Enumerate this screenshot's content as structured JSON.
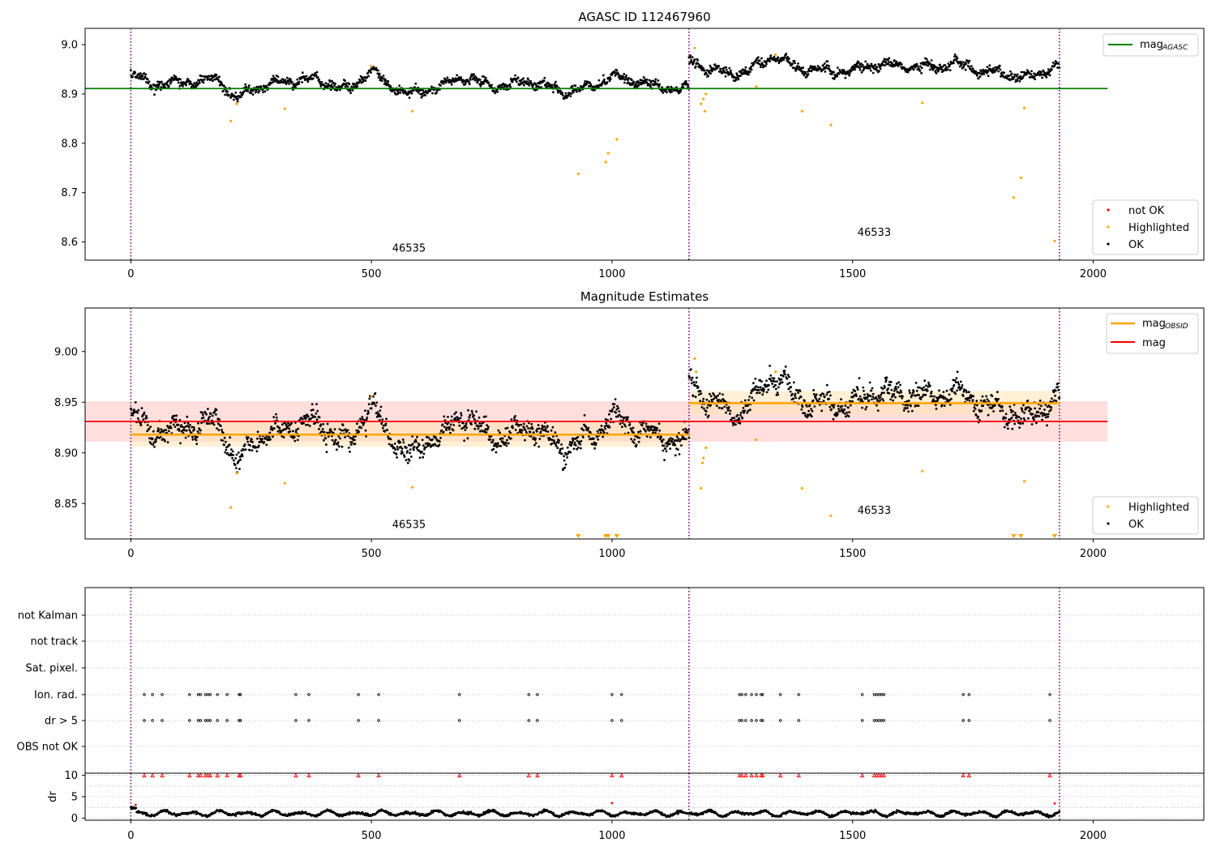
{
  "colors": {
    "ok": "#000000",
    "highlighted": "#ffa500",
    "not_ok": "#ff0000",
    "mag_agasc": "#008000",
    "mag_obsid": "#ffa500",
    "mag": "#ff0000",
    "obs_boundary": "#800080",
    "mag_band": "#ffcccc",
    "mag_obsid_band": "#ffe4b5"
  },
  "chart_data": [
    {
      "type": "scatter",
      "title": "AGASC ID 112467960",
      "xlabel": "",
      "ylabel": "",
      "xlim": [
        -95,
        2230
      ],
      "ylim": [
        8.563,
        9.033
      ],
      "xticks": [
        0,
        500,
        1000,
        1500,
        2000
      ],
      "yticks": [
        8.6,
        8.7,
        8.8,
        8.9,
        9.0
      ],
      "ytick_labels": [
        "8.6",
        "8.7",
        "8.8",
        "8.9",
        "9.0"
      ],
      "grid": false,
      "legend_placement": [
        "upper-right",
        "lower-right"
      ],
      "legend": {
        "upper": [
          {
            "label": "mag",
            "sub": "AGASC"
          }
        ],
        "lower": [
          {
            "label": "not OK"
          },
          {
            "label": "Highlighted"
          },
          {
            "label": "OK"
          }
        ]
      },
      "lines": [
        {
          "name": "mag_AGASC",
          "y": 8.911,
          "x": [
            -95,
            2030
          ]
        }
      ],
      "obs_boundaries": [
        0,
        1160,
        1930
      ],
      "obsids": [
        {
          "label": "46535",
          "x": 578,
          "y": 8.58
        },
        {
          "label": "46533",
          "x": 1545,
          "y": 8.612
        }
      ],
      "highlighted": {
        "x": [
          208,
          220,
          320,
          500,
          585,
          930,
          987,
          992,
          1010,
          1172,
          1185,
          1190,
          1193,
          1195,
          1300,
          1340,
          1395,
          1455,
          1645,
          1835,
          1850,
          1857,
          1920
        ],
        "y": [
          8.845,
          8.88,
          8.87,
          8.956,
          8.865,
          8.738,
          8.762,
          8.78,
          8.808,
          8.993,
          8.88,
          8.89,
          8.865,
          8.9,
          8.915,
          8.98,
          8.865,
          8.837,
          8.882,
          8.69,
          8.73,
          8.872,
          8.602
        ]
      },
      "ok_segments": [
        {
          "x_range": [
            0,
            1160
          ],
          "knots_x": [
            0,
            60,
            130,
            180,
            220,
            260,
            330,
            380,
            450,
            500,
            540,
            580,
            640,
            690,
            760,
            830,
            900,
            960,
            1000,
            1050,
            1100,
            1160
          ],
          "knots_y": [
            8.935,
            8.92,
            8.925,
            8.93,
            8.89,
            8.915,
            8.925,
            8.93,
            8.91,
            8.945,
            8.915,
            8.9,
            8.915,
            8.935,
            8.915,
            8.925,
            8.905,
            8.915,
            8.935,
            8.925,
            8.915,
            8.91
          ],
          "noise": 0.008
        },
        {
          "x_range": [
            1160,
            1930
          ],
          "knots_x": [
            1160,
            1200,
            1260,
            1340,
            1400,
            1480,
            1560,
            1640,
            1720,
            1780,
            1860,
            1930
          ],
          "knots_y": [
            8.97,
            8.95,
            8.94,
            8.975,
            8.95,
            8.945,
            8.96,
            8.955,
            8.96,
            8.945,
            8.935,
            8.955
          ],
          "noise": 0.008
        }
      ]
    },
    {
      "type": "scatter",
      "title": "Magnitude Estimates",
      "xlabel": "",
      "ylabel": "",
      "xlim": [
        -95,
        2230
      ],
      "ylim": [
        8.815,
        9.043
      ],
      "xticks": [
        0,
        500,
        1000,
        1500,
        2000
      ],
      "yticks": [
        8.85,
        8.9,
        8.95,
        9.0
      ],
      "ytick_labels": [
        "8.85",
        "8.90",
        "8.95",
        "9.00"
      ],
      "grid": false,
      "legend_placement": [
        "upper-right",
        "lower-right"
      ],
      "legend": {
        "upper": [
          {
            "label": "mag",
            "sub": "OBSID"
          },
          {
            "label": "mag"
          }
        ],
        "lower": [
          {
            "label": "Highlighted"
          },
          {
            "label": "OK"
          }
        ]
      },
      "lines": [
        {
          "name": "mag",
          "y": 8.931,
          "x": [
            -95,
            2030
          ],
          "band": [
            8.911,
            8.951
          ]
        },
        {
          "name": "mag_OBSID",
          "y": 8.918,
          "x": [
            0,
            1160
          ],
          "band": [
            8.906,
            8.93
          ]
        },
        {
          "name": "mag_OBSID",
          "y": 8.949,
          "x": [
            1160,
            1930
          ],
          "band": [
            8.938,
            8.961
          ]
        }
      ],
      "obs_boundaries": [
        0,
        1160,
        1930
      ],
      "obsids": [
        {
          "label": "46535",
          "x": 578,
          "y": 8.826
        },
        {
          "label": "46533",
          "x": 1545,
          "y": 8.84
        }
      ],
      "highlighted": {
        "x": [
          208,
          220,
          320,
          500,
          585,
          1172,
          1175,
          1185,
          1188,
          1190,
          1195,
          1300,
          1340,
          1395,
          1455,
          1645,
          1857
        ],
        "y": [
          8.846,
          8.88,
          8.87,
          8.956,
          8.866,
          8.993,
          8.98,
          8.865,
          8.89,
          8.895,
          8.905,
          8.913,
          8.98,
          8.865,
          8.838,
          8.882,
          8.872
        ]
      },
      "below_range_markers": {
        "x": [
          930,
          987,
          992,
          1010,
          1835,
          1850,
          1920
        ]
      },
      "ok_segments": [
        {
          "x_range": [
            0,
            1160
          ],
          "knots_x": [
            0,
            60,
            130,
            180,
            220,
            260,
            330,
            380,
            450,
            500,
            540,
            580,
            640,
            690,
            760,
            830,
            900,
            960,
            1000,
            1050,
            1100,
            1160
          ],
          "knots_y": [
            8.935,
            8.92,
            8.925,
            8.93,
            8.89,
            8.915,
            8.925,
            8.93,
            8.91,
            8.945,
            8.915,
            8.9,
            8.915,
            8.935,
            8.915,
            8.925,
            8.905,
            8.915,
            8.935,
            8.925,
            8.915,
            8.91
          ],
          "noise": 0.009
        },
        {
          "x_range": [
            1160,
            1930
          ],
          "knots_x": [
            1160,
            1200,
            1260,
            1340,
            1400,
            1480,
            1560,
            1640,
            1720,
            1780,
            1860,
            1930
          ],
          "knots_y": [
            8.97,
            8.95,
            8.94,
            8.975,
            8.95,
            8.945,
            8.96,
            8.955,
            8.96,
            8.945,
            8.935,
            8.955
          ],
          "noise": 0.009
        }
      ]
    },
    {
      "type": "scatter",
      "title": "",
      "xlabel": "",
      "ylabel": "",
      "xlim": [
        -95,
        2230
      ],
      "categories": [
        "OBS not OK",
        "dr > 5",
        "Ion. rad.",
        "Sat. pixel.",
        "not track",
        "not Kalman"
      ],
      "grid": true,
      "obs_boundaries": [
        0,
        1160,
        1930
      ],
      "flags": {
        "dr > 5": [
          28,
          45,
          65,
          122,
          140,
          145,
          155,
          160,
          165,
          180,
          200,
          225,
          228,
          343,
          370,
          473,
          515,
          683,
          827,
          845,
          1000,
          1020,
          1265,
          1270,
          1278,
          1290,
          1300,
          1310,
          1313,
          1350,
          1388,
          1520,
          1545,
          1550,
          1555,
          1560,
          1565,
          1730,
          1742,
          1910
        ],
        "Ion. rad.": [
          28,
          45,
          65,
          122,
          140,
          145,
          155,
          160,
          165,
          180,
          200,
          225,
          228,
          343,
          370,
          473,
          515,
          683,
          827,
          845,
          1000,
          1020,
          1265,
          1270,
          1278,
          1290,
          1300,
          1310,
          1313,
          1350,
          1388,
          1520,
          1545,
          1550,
          1555,
          1560,
          1565,
          1730,
          1742,
          1910
        ]
      }
    },
    {
      "type": "scatter",
      "title": "",
      "xlabel": "",
      "ylabel": "dr",
      "xlim": [
        -95,
        2230
      ],
      "ylim": [
        -0.5,
        10.5
      ],
      "xticks": [
        0,
        500,
        1000,
        1500,
        2000
      ],
      "yticks": [
        0,
        5,
        10
      ],
      "ytick_labels": [
        "0",
        "5",
        "10"
      ],
      "grid": true,
      "obs_boundaries": [
        0,
        1160,
        1930
      ],
      "overflow_markers": {
        "y": 10,
        "x": [
          28,
          45,
          65,
          122,
          140,
          145,
          155,
          160,
          165,
          180,
          200,
          225,
          228,
          343,
          370,
          473,
          515,
          683,
          827,
          845,
          1000,
          1020,
          1265,
          1270,
          1278,
          1290,
          1300,
          1310,
          1313,
          1350,
          1388,
          1520,
          1545,
          1550,
          1555,
          1560,
          1565,
          1730,
          1742,
          1910
        ]
      },
      "red_points": {
        "x": [
          10,
          1000,
          1920
        ],
        "y": [
          3.1,
          3.5,
          3.4
        ]
      },
      "ok_segments": [
        {
          "x_range": [
            0,
            1930
          ],
          "baseline": 1.1,
          "amplitude": 0.7,
          "noise": 0.35
        }
      ]
    }
  ]
}
